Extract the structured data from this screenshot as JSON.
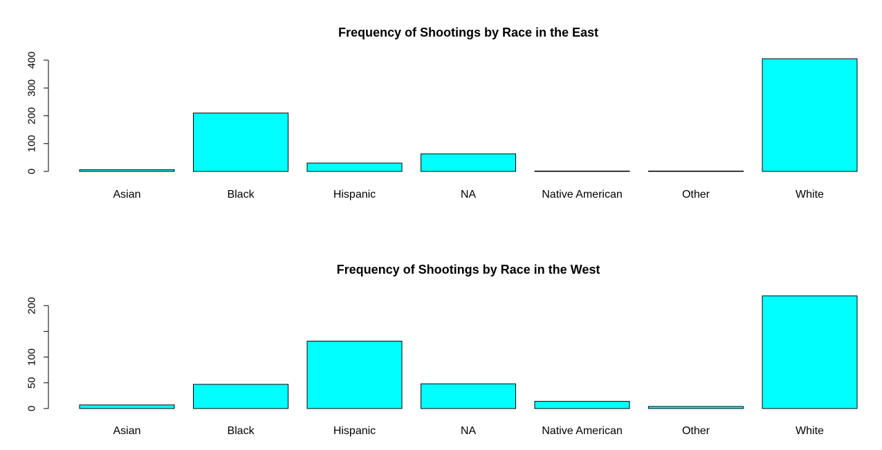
{
  "chart_data": [
    {
      "type": "bar",
      "title": "Frequency of Shootings by Race in the East",
      "categories": [
        "Asian",
        "Black",
        "Hispanic",
        "NA",
        "Native American",
        "Other",
        "White"
      ],
      "values": [
        6,
        210,
        30,
        63,
        1,
        1,
        405
      ],
      "yticks": [
        0,
        100,
        200,
        300,
        400
      ],
      "ylim": [
        0,
        405
      ],
      "bar_color": "#00FFFF",
      "grid": false
    },
    {
      "type": "bar",
      "title": "Frequency of Shootings by Race in the West",
      "categories": [
        "Asian",
        "Black",
        "Hispanic",
        "NA",
        "Native American",
        "Other",
        "White"
      ],
      "values": [
        7,
        47,
        131,
        48,
        14,
        4,
        219
      ],
      "yticks": [
        0,
        50,
        100,
        150,
        200
      ],
      "yticklabels": [
        "0",
        "50",
        "100",
        "",
        "200"
      ],
      "ylim": [
        0,
        219
      ],
      "bar_color": "#00FFFF",
      "grid": false
    }
  ]
}
